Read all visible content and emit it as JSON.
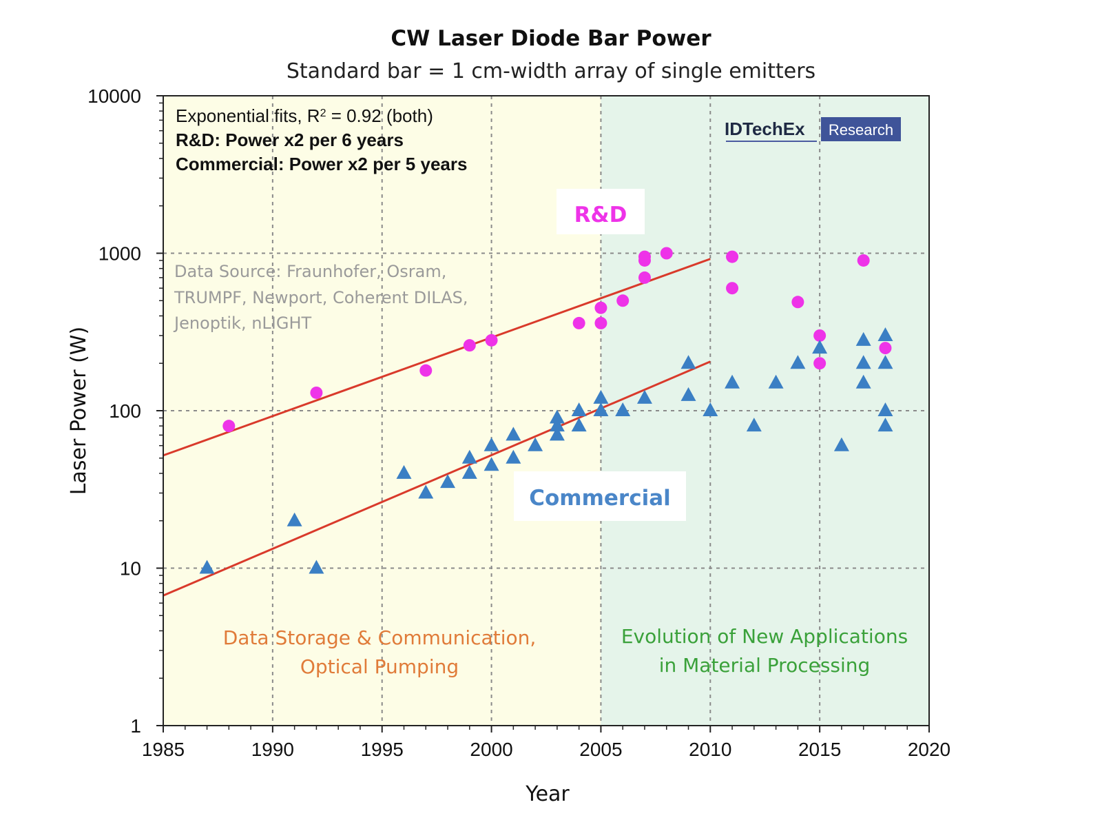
{
  "chart_data": {
    "type": "scatter",
    "title": "CW Laser Diode Bar Power",
    "subtitle": "Standard bar = 1 cm-width array of single emitters",
    "xlabel": "Year",
    "ylabel": "Laser Power (W)",
    "xlim": [
      1985,
      2020
    ],
    "ylim": [
      1,
      10000
    ],
    "yscale": "log",
    "x_ticks": [
      1985,
      1990,
      1995,
      2000,
      2005,
      2010,
      2015,
      2020
    ],
    "y_ticks": [
      1,
      10,
      100,
      1000,
      10000
    ],
    "grid": "dashed",
    "notes": {
      "fit_prefix": "Exponential fits, R",
      "fit_sup": "2",
      "fit_suffix": " = 0.92 (both)",
      "rd_rate": "R&D: Power x2 per 6 years",
      "commercial_rate": "Commercial: Power x2 per 5 years"
    },
    "data_source": [
      "Data Source: Fraunhofer, Osram,",
      "TRUMPF, Newport, Coherent DILAS,",
      "Jenoptik, nLIGHT"
    ],
    "logo": {
      "brand": "IDTechEx",
      "tag": "Research"
    },
    "regions": [
      {
        "x_range": [
          1985,
          2005
        ],
        "color": "#fdfde6",
        "label": [
          "Data Storage & Communication,",
          "Optical Pumping"
        ],
        "label_color": "#e07b39"
      },
      {
        "x_range": [
          2005,
          2020
        ],
        "color": "#e5f4ea",
        "label": [
          "Evolution of New Applications",
          "in Material Processing"
        ],
        "label_color": "#3aa13a"
      }
    ],
    "series": [
      {
        "name": "R&D",
        "marker": "circle",
        "color": "#ee33e8",
        "points": [
          [
            1988,
            80
          ],
          [
            1992,
            130
          ],
          [
            1997,
            180
          ],
          [
            1999,
            260
          ],
          [
            2000,
            280
          ],
          [
            2004,
            360
          ],
          [
            2005,
            360
          ],
          [
            2005,
            450
          ],
          [
            2006,
            500
          ],
          [
            2007,
            700
          ],
          [
            2007,
            900
          ],
          [
            2007,
            950
          ],
          [
            2008,
            1000
          ],
          [
            2011,
            950
          ],
          [
            2011,
            600
          ],
          [
            2014,
            490
          ],
          [
            2015,
            300
          ],
          [
            2015,
            200
          ],
          [
            2017,
            900
          ],
          [
            2018,
            250
          ]
        ],
        "fit": {
          "x": [
            1985,
            2010
          ],
          "y": [
            52,
            920
          ],
          "color": "#d93a2b"
        }
      },
      {
        "name": "Commercial",
        "marker": "triangle",
        "color": "#3b7fc4",
        "points": [
          [
            1987,
            10
          ],
          [
            1991,
            20
          ],
          [
            1992,
            10
          ],
          [
            1996,
            40
          ],
          [
            1997,
            30
          ],
          [
            1998,
            35
          ],
          [
            1999,
            40
          ],
          [
            1999,
            50
          ],
          [
            2000,
            45
          ],
          [
            2000,
            60
          ],
          [
            2001,
            50
          ],
          [
            2001,
            70
          ],
          [
            2002,
            60
          ],
          [
            2003,
            70
          ],
          [
            2003,
            80
          ],
          [
            2003,
            90
          ],
          [
            2004,
            80
          ],
          [
            2004,
            100
          ],
          [
            2005,
            100
          ],
          [
            2005,
            120
          ],
          [
            2006,
            100
          ],
          [
            2007,
            120
          ],
          [
            2009,
            125
          ],
          [
            2009,
            200
          ],
          [
            2010,
            100
          ],
          [
            2011,
            150
          ],
          [
            2012,
            80
          ],
          [
            2013,
            150
          ],
          [
            2014,
            200
          ],
          [
            2015,
            250
          ],
          [
            2016,
            60
          ],
          [
            2017,
            150
          ],
          [
            2017,
            200
          ],
          [
            2017,
            280
          ],
          [
            2018,
            80
          ],
          [
            2018,
            100
          ],
          [
            2018,
            200
          ],
          [
            2018,
            300
          ]
        ],
        "fit": {
          "x": [
            1985,
            2010
          ],
          "y": [
            6.7,
            205
          ],
          "color": "#d93a2b"
        }
      }
    ],
    "series_label_colors": {
      "rd": "#ee33e8",
      "commercial": "#4a86c8"
    }
  }
}
